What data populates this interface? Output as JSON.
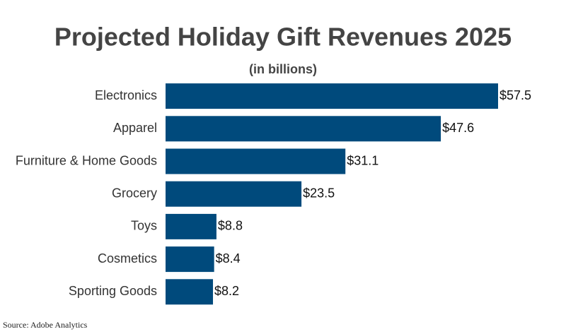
{
  "chart_data": {
    "type": "bar",
    "orientation": "horizontal",
    "title": "Projected Holiday Gift Revenues 2025",
    "subtitle": "(in billions)",
    "categories": [
      "Electronics",
      "Apparel",
      "Furniture & Home Goods",
      "Grocery",
      "Toys",
      "Cosmetics",
      "Sporting Goods"
    ],
    "values": [
      57.5,
      47.6,
      31.1,
      23.5,
      8.8,
      8.4,
      8.2
    ],
    "value_labels": [
      "$57.5",
      "$47.6",
      "$31.1",
      "$23.5",
      "$8.8",
      "$8.4",
      "$8.2"
    ],
    "color": "#004a7c",
    "source": "Source: Adobe Analytics"
  }
}
